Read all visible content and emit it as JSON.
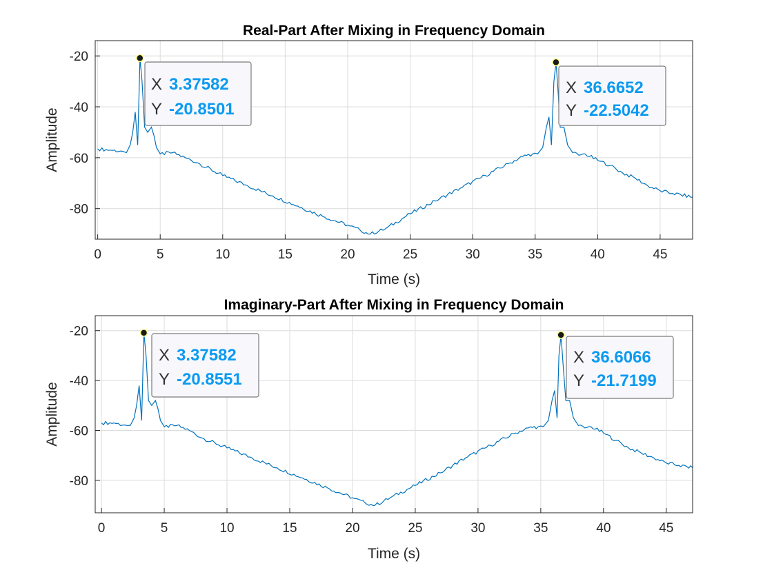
{
  "chart_data": [
    {
      "type": "line",
      "title": "Real-Part After Mixing in Frequency Domain",
      "xlabel": "Time (s)",
      "ylabel": "Amplitude",
      "xlim": [
        -0.2,
        47.6
      ],
      "ylim": [
        -92,
        -14
      ],
      "grid": true,
      "color": "#0072BD",
      "xticks": [
        0,
        5,
        10,
        15,
        20,
        25,
        30,
        35,
        40,
        45
      ],
      "yticks": [
        -80,
        -60,
        -40,
        -20
      ],
      "series": [
        {
          "x": [
            0,
            1,
            2,
            2.3,
            2.6,
            2.8,
            3.0,
            3.2,
            3.38,
            3.55,
            3.75,
            4.0,
            4.3,
            4.7,
            5.0,
            6,
            7,
            8,
            10,
            12,
            14,
            16,
            18,
            20,
            21,
            21.8,
            23,
            25,
            27,
            29,
            31,
            33,
            34,
            34.8,
            35.2,
            35.6,
            35.9,
            36.1,
            36.3,
            36.5,
            36.67,
            36.85,
            37.0,
            37.3,
            37.6,
            38.0,
            38.5,
            39,
            40,
            41,
            42,
            43,
            44,
            45,
            46,
            47.6
          ],
          "y": [
            -56.5,
            -57,
            -57.5,
            -58,
            -55,
            -50,
            -42,
            -55,
            -20.85,
            -30,
            -48,
            -50,
            -48,
            -56,
            -58.5,
            -58,
            -60,
            -62,
            -67,
            -71,
            -75,
            -79,
            -83,
            -86.5,
            -88.5,
            -90,
            -88,
            -82,
            -77,
            -72,
            -67,
            -62,
            -59.5,
            -58.5,
            -58.5,
            -56,
            -48,
            -44,
            -55,
            -30,
            -22.5,
            -35,
            -48,
            -48,
            -55,
            -58,
            -59,
            -58.5,
            -61,
            -63,
            -66,
            -68,
            -71,
            -73,
            -74,
            -75.5
          ]
        }
      ],
      "annotations": [
        {
          "x_label": "X",
          "x_value": "3.37582",
          "y_label": "Y",
          "y_value": "-20.8501"
        },
        {
          "x_label": "X",
          "x_value": "36.6652",
          "y_label": "Y",
          "y_value": "-22.5042"
        }
      ]
    },
    {
      "type": "line",
      "title": "Imaginary-Part After Mixing in Frequency Domain",
      "xlabel": "Time (s)",
      "ylabel": "Amplitude",
      "xlim": [
        -0.5,
        47.1
      ],
      "ylim": [
        -93,
        -14
      ],
      "grid": true,
      "color": "#0072BD",
      "xticks": [
        0,
        5,
        10,
        15,
        20,
        25,
        30,
        35,
        40,
        45
      ],
      "yticks": [
        -80,
        -60,
        -40,
        -20
      ],
      "series": [
        {
          "x": [
            0,
            1,
            2,
            2.3,
            2.6,
            2.8,
            3.0,
            3.2,
            3.38,
            3.55,
            3.75,
            4.0,
            4.3,
            4.7,
            5.0,
            6,
            7,
            8,
            10,
            12,
            14,
            16,
            18,
            20,
            21,
            21.8,
            23,
            25,
            27,
            29,
            31,
            33,
            34,
            34.8,
            35.2,
            35.6,
            35.9,
            36.1,
            36.3,
            36.45,
            36.61,
            36.8,
            37.0,
            37.3,
            37.6,
            38.0,
            38.5,
            39,
            40,
            41,
            42,
            43,
            44,
            45,
            46,
            47.1
          ],
          "y": [
            -57,
            -57,
            -58,
            -58,
            -55,
            -50,
            -42,
            -56,
            -20.86,
            -30,
            -48,
            -50,
            -48,
            -56,
            -58.5,
            -58,
            -60,
            -63,
            -67,
            -71,
            -75,
            -79,
            -83,
            -87,
            -89,
            -90,
            -87,
            -82,
            -77,
            -71,
            -66,
            -61,
            -59,
            -58.5,
            -58.5,
            -56,
            -48,
            -44,
            -55,
            -30,
            -21.7,
            -35,
            -48,
            -48,
            -55,
            -58,
            -59,
            -58.5,
            -61,
            -64,
            -67,
            -69,
            -71,
            -73,
            -74,
            -75
          ]
        }
      ],
      "annotations": [
        {
          "x_label": "X",
          "x_value": "3.37582",
          "y_label": "Y",
          "y_value": "-20.8551"
        },
        {
          "x_label": "X",
          "x_value": "36.6066",
          "y_label": "Y",
          "y_value": "-21.7199"
        }
      ]
    }
  ]
}
